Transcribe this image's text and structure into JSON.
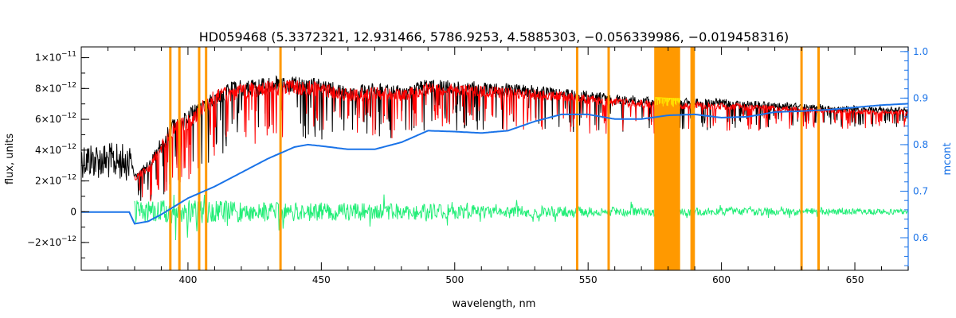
{
  "chart_data": {
    "type": "line",
    "title": "HD059468    (5.3372321, 12.931466, 5786.9253, 4.5885303, −0.056339986, −0.019458316)",
    "xlabel": "wavelength, nm",
    "ylabel": "flux, units",
    "ylabel_right": "mcont",
    "xlim": [
      360,
      670
    ],
    "ylim": [
      -3.8e-12,
      1.07e-11
    ],
    "ylim_right": [
      0.53,
      1.01
    ],
    "x_ticks": [
      400,
      450,
      500,
      550,
      600,
      650
    ],
    "x_tick_labels": [
      "400",
      "450",
      "500",
      "550",
      "600",
      "650"
    ],
    "y_ticks": [
      -2e-12,
      0,
      2e-12,
      4e-12,
      6e-12,
      8e-12,
      1e-11
    ],
    "y_tick_labels": [
      {
        "mant": "−2×10",
        "exp": "−12"
      },
      {
        "mant": "0",
        "exp": ""
      },
      {
        "mant": "2×10",
        "exp": "−12"
      },
      {
        "mant": "4×10",
        "exp": "−12"
      },
      {
        "mant": "6×10",
        "exp": "−12"
      },
      {
        "mant": "8×10",
        "exp": "−12"
      },
      {
        "mant": "1×10",
        "exp": "−11"
      }
    ],
    "y_right_ticks": [
      0.6,
      0.7,
      0.8,
      0.9,
      1.0
    ],
    "y_right_tick_labels": [
      "0.6",
      "0.7",
      "0.8",
      "0.9",
      "1.0"
    ],
    "grid": false,
    "masked_lines_nm": [
      393.4,
      396.8,
      404.2,
      406.8,
      434.7,
      545.9,
      557.7,
      588.8,
      589.6,
      630.0,
      636.4
    ],
    "masked_band_nm": [
      574.8,
      584.5
    ],
    "series": [
      {
        "role": "observed",
        "color": "#000000",
        "x": [
          360,
          370,
          378,
          380,
          385,
          390,
          395,
          400,
          410,
          420,
          430,
          440,
          450,
          460,
          470,
          480,
          490,
          500,
          520,
          540,
          560,
          580,
          600,
          620,
          640,
          660,
          670
        ],
        "y": [
          4.6e-12,
          4.5e-12,
          4.4e-12,
          2.6e-12,
          3.3e-12,
          4.8e-12,
          6.2e-12,
          6.6e-12,
          8.1e-12,
          8.6e-12,
          8.7e-12,
          8.8e-12,
          8.6e-12,
          8.2e-12,
          8.3e-12,
          8.2e-12,
          8.6e-12,
          8.5e-12,
          8.3e-12,
          8e-12,
          7.6e-12,
          7.4e-12,
          7.3e-12,
          7.1e-12,
          6.9e-12,
          6.8e-12,
          6.8e-12
        ],
        "depth": [
          2.4e-12,
          2.4e-12,
          2.4e-12,
          1.4e-12,
          2e-12,
          2.8e-12,
          3.2e-12,
          3.3e-12,
          3.3e-12,
          3.2e-12,
          3.1e-12,
          3e-12,
          2.8e-12,
          2.6e-12,
          2.6e-12,
          2.5e-12,
          2.5e-12,
          2.4e-12,
          2.2e-12,
          2e-12,
          1.8e-12,
          1.6e-12,
          1.4e-12,
          1.2e-12,
          1e-12,
          9e-13,
          9e-13
        ]
      },
      {
        "role": "model",
        "color": "#ff0000",
        "x": [
          380,
          385,
          390,
          395,
          400,
          410,
          420,
          430,
          440,
          450,
          460,
          470,
          480,
          490,
          500,
          520,
          540,
          560,
          580,
          600,
          620,
          640,
          660,
          670
        ],
        "y": [
          2.4e-12,
          3.1e-12,
          4.6e-12,
          6e-12,
          6.4e-12,
          7.9e-12,
          8.4e-12,
          8.5e-12,
          8.6e-12,
          8.4e-12,
          8e-12,
          8.1e-12,
          8e-12,
          8.4e-12,
          8.3e-12,
          8.1e-12,
          7.8e-12,
          7.4e-12,
          7.2e-12,
          7.1e-12,
          6.9e-12,
          6.7e-12,
          6.6e-12,
          6.6e-12
        ]
      },
      {
        "role": "residuals",
        "color": "#22ee77",
        "x": [
          380,
          400,
          420,
          440,
          460,
          480,
          500,
          520,
          540,
          560,
          580,
          600,
          620,
          640,
          660,
          670
        ],
        "y": [
          0,
          0,
          0,
          0,
          0,
          0,
          0,
          0,
          0,
          0,
          0,
          0,
          0,
          0,
          0,
          0
        ],
        "amplitude": [
          1.2e-12,
          1.3e-12,
          1.1e-12,
          1e-12,
          1e-12,
          9e-13,
          8e-13,
          7e-13,
          6e-13,
          5e-13,
          5e-13,
          4e-13,
          4e-13,
          3.5e-13,
          3e-13,
          3e-13
        ]
      },
      {
        "role": "continuum",
        "axis": "right",
        "color": "#1a73e8",
        "x": [
          360,
          378,
          380,
          385,
          390,
          400,
          410,
          420,
          430,
          440,
          445,
          450,
          460,
          470,
          480,
          490,
          500,
          510,
          520,
          530,
          540,
          550,
          560,
          570,
          580,
          590,
          600,
          610,
          620,
          630,
          640,
          650,
          660,
          670
        ],
        "y": [
          0.655,
          0.655,
          0.63,
          0.635,
          0.65,
          0.685,
          0.71,
          0.74,
          0.77,
          0.795,
          0.8,
          0.797,
          0.79,
          0.79,
          0.805,
          0.83,
          0.828,
          0.825,
          0.83,
          0.85,
          0.865,
          0.865,
          0.855,
          0.855,
          0.863,
          0.865,
          0.858,
          0.86,
          0.87,
          0.872,
          0.875,
          0.88,
          0.885,
          0.888
        ]
      }
    ]
  }
}
